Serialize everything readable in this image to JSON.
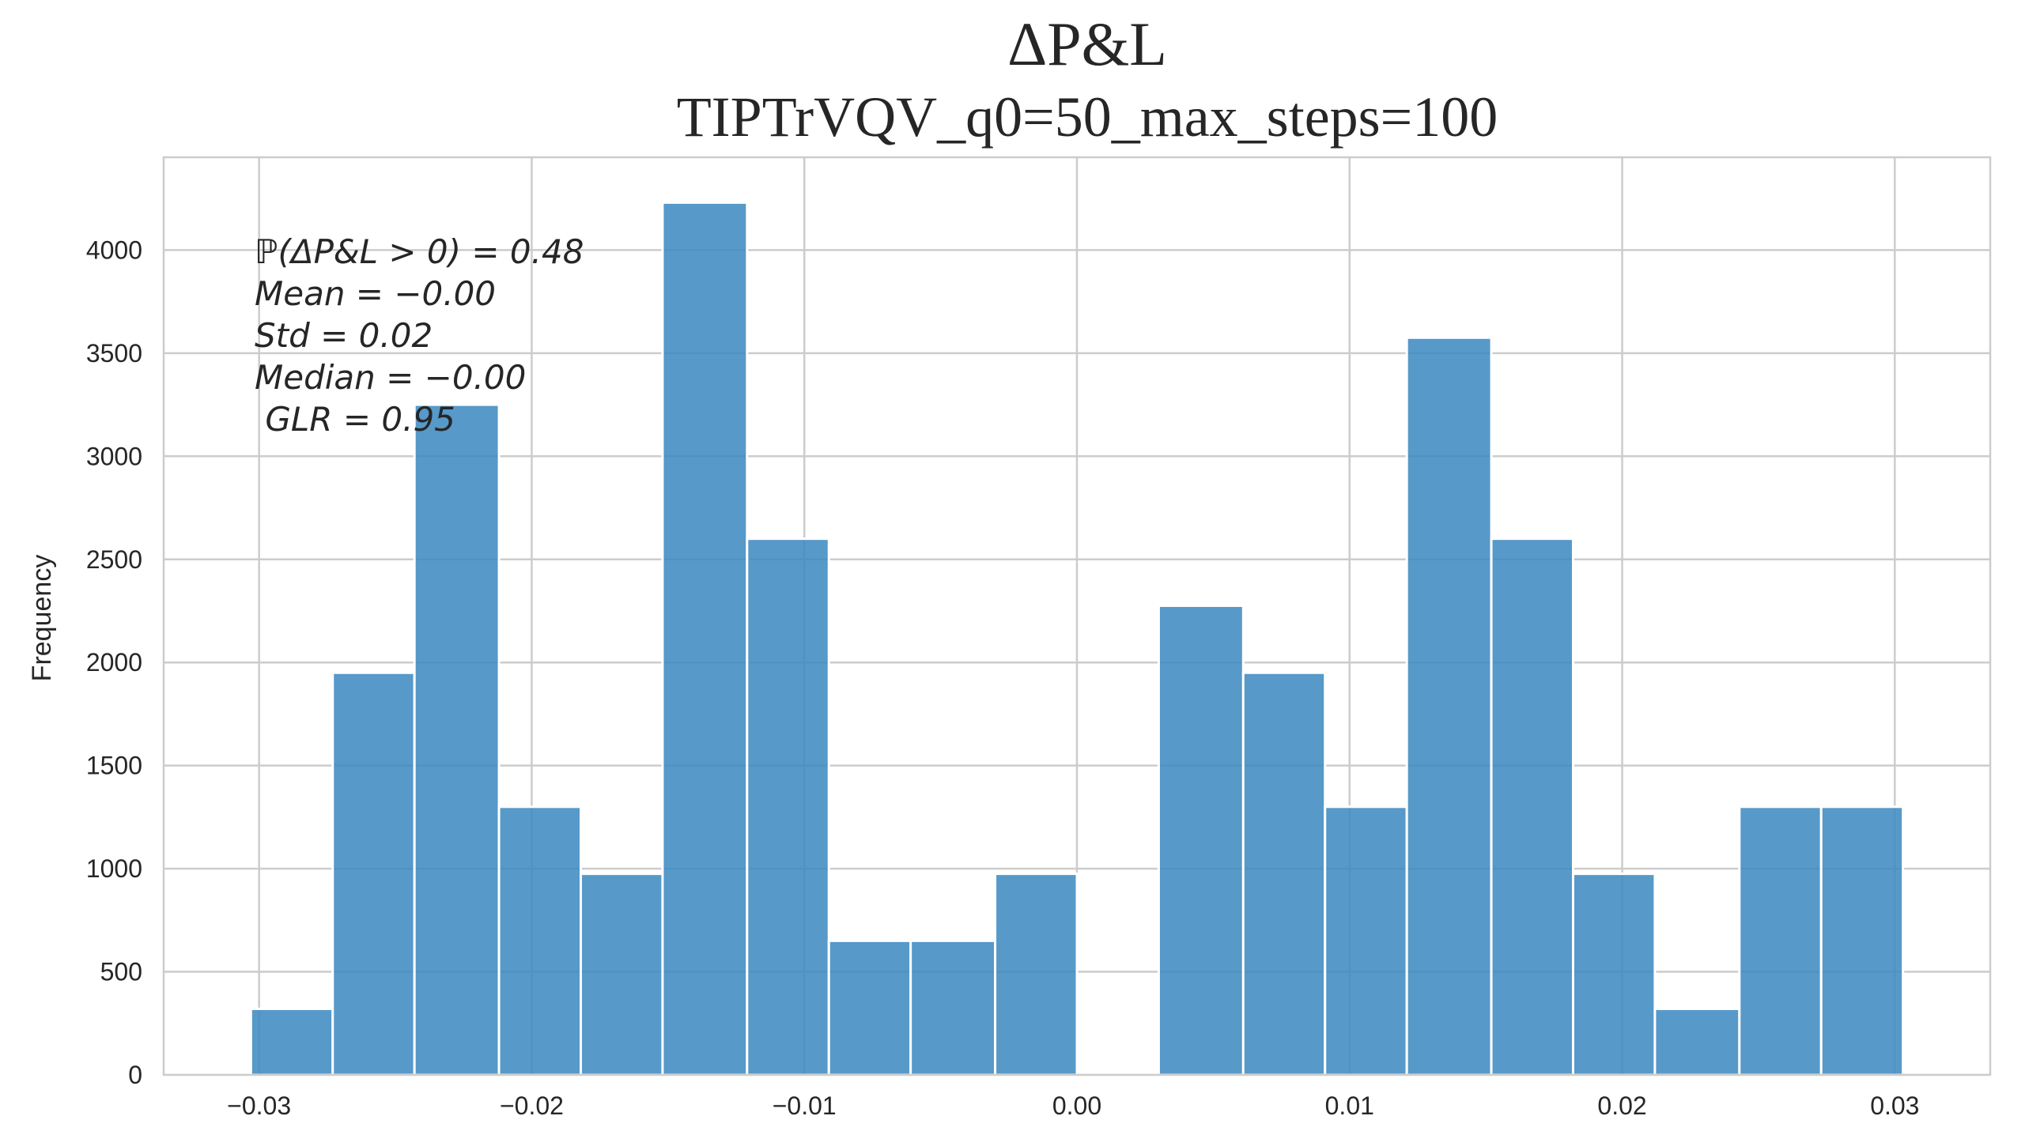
{
  "chart_data": {
    "type": "bar",
    "title": "ΔP&L",
    "subtitle": "TIPTrVQV_q0=50_max_steps=100",
    "xlabel": "",
    "ylabel": "Frequency",
    "xlim": [
      -0.0335,
      0.0335
    ],
    "ylim": [
      0,
      4450
    ],
    "grid": true,
    "x_ticks": [
      -0.03,
      -0.02,
      -0.01,
      0.0,
      0.01,
      0.02,
      0.03
    ],
    "x_tick_labels": [
      "−0.03",
      "−0.02",
      "−0.01",
      "0.00",
      "0.01",
      "0.02",
      "0.03"
    ],
    "y_ticks": [
      0,
      500,
      1000,
      1500,
      2000,
      2500,
      3000,
      3500,
      4000
    ],
    "y_tick_labels": [
      "0",
      "500",
      "1000",
      "1500",
      "2000",
      "2500",
      "3000",
      "3500",
      "4000"
    ],
    "bin_edges": [
      -0.0303,
      -0.0273,
      -0.0243,
      -0.0212,
      -0.0182,
      -0.0152,
      -0.0121,
      -0.0091,
      -0.0061,
      -0.003,
      0.0,
      0.003,
      0.0061,
      0.0091,
      0.0121,
      0.0152,
      0.0182,
      0.0212,
      0.0243,
      0.0273,
      0.0303
    ],
    "counts": [
      320,
      1950,
      3250,
      1300,
      975,
      4230,
      2600,
      650,
      650,
      975,
      0,
      2275,
      1950,
      1300,
      3575,
      2600,
      975,
      320,
      1300,
      1300
    ],
    "annotations": [
      "ℙ(ΔP&L > 0) = 0.48",
      "Mean = −0.00",
      "Std = 0.02",
      "Median = −0.00",
      " GLR = 0.95"
    ],
    "colors": {
      "bar": "#3a87c0",
      "grid": "#cccccc",
      "text": "#262626"
    }
  }
}
